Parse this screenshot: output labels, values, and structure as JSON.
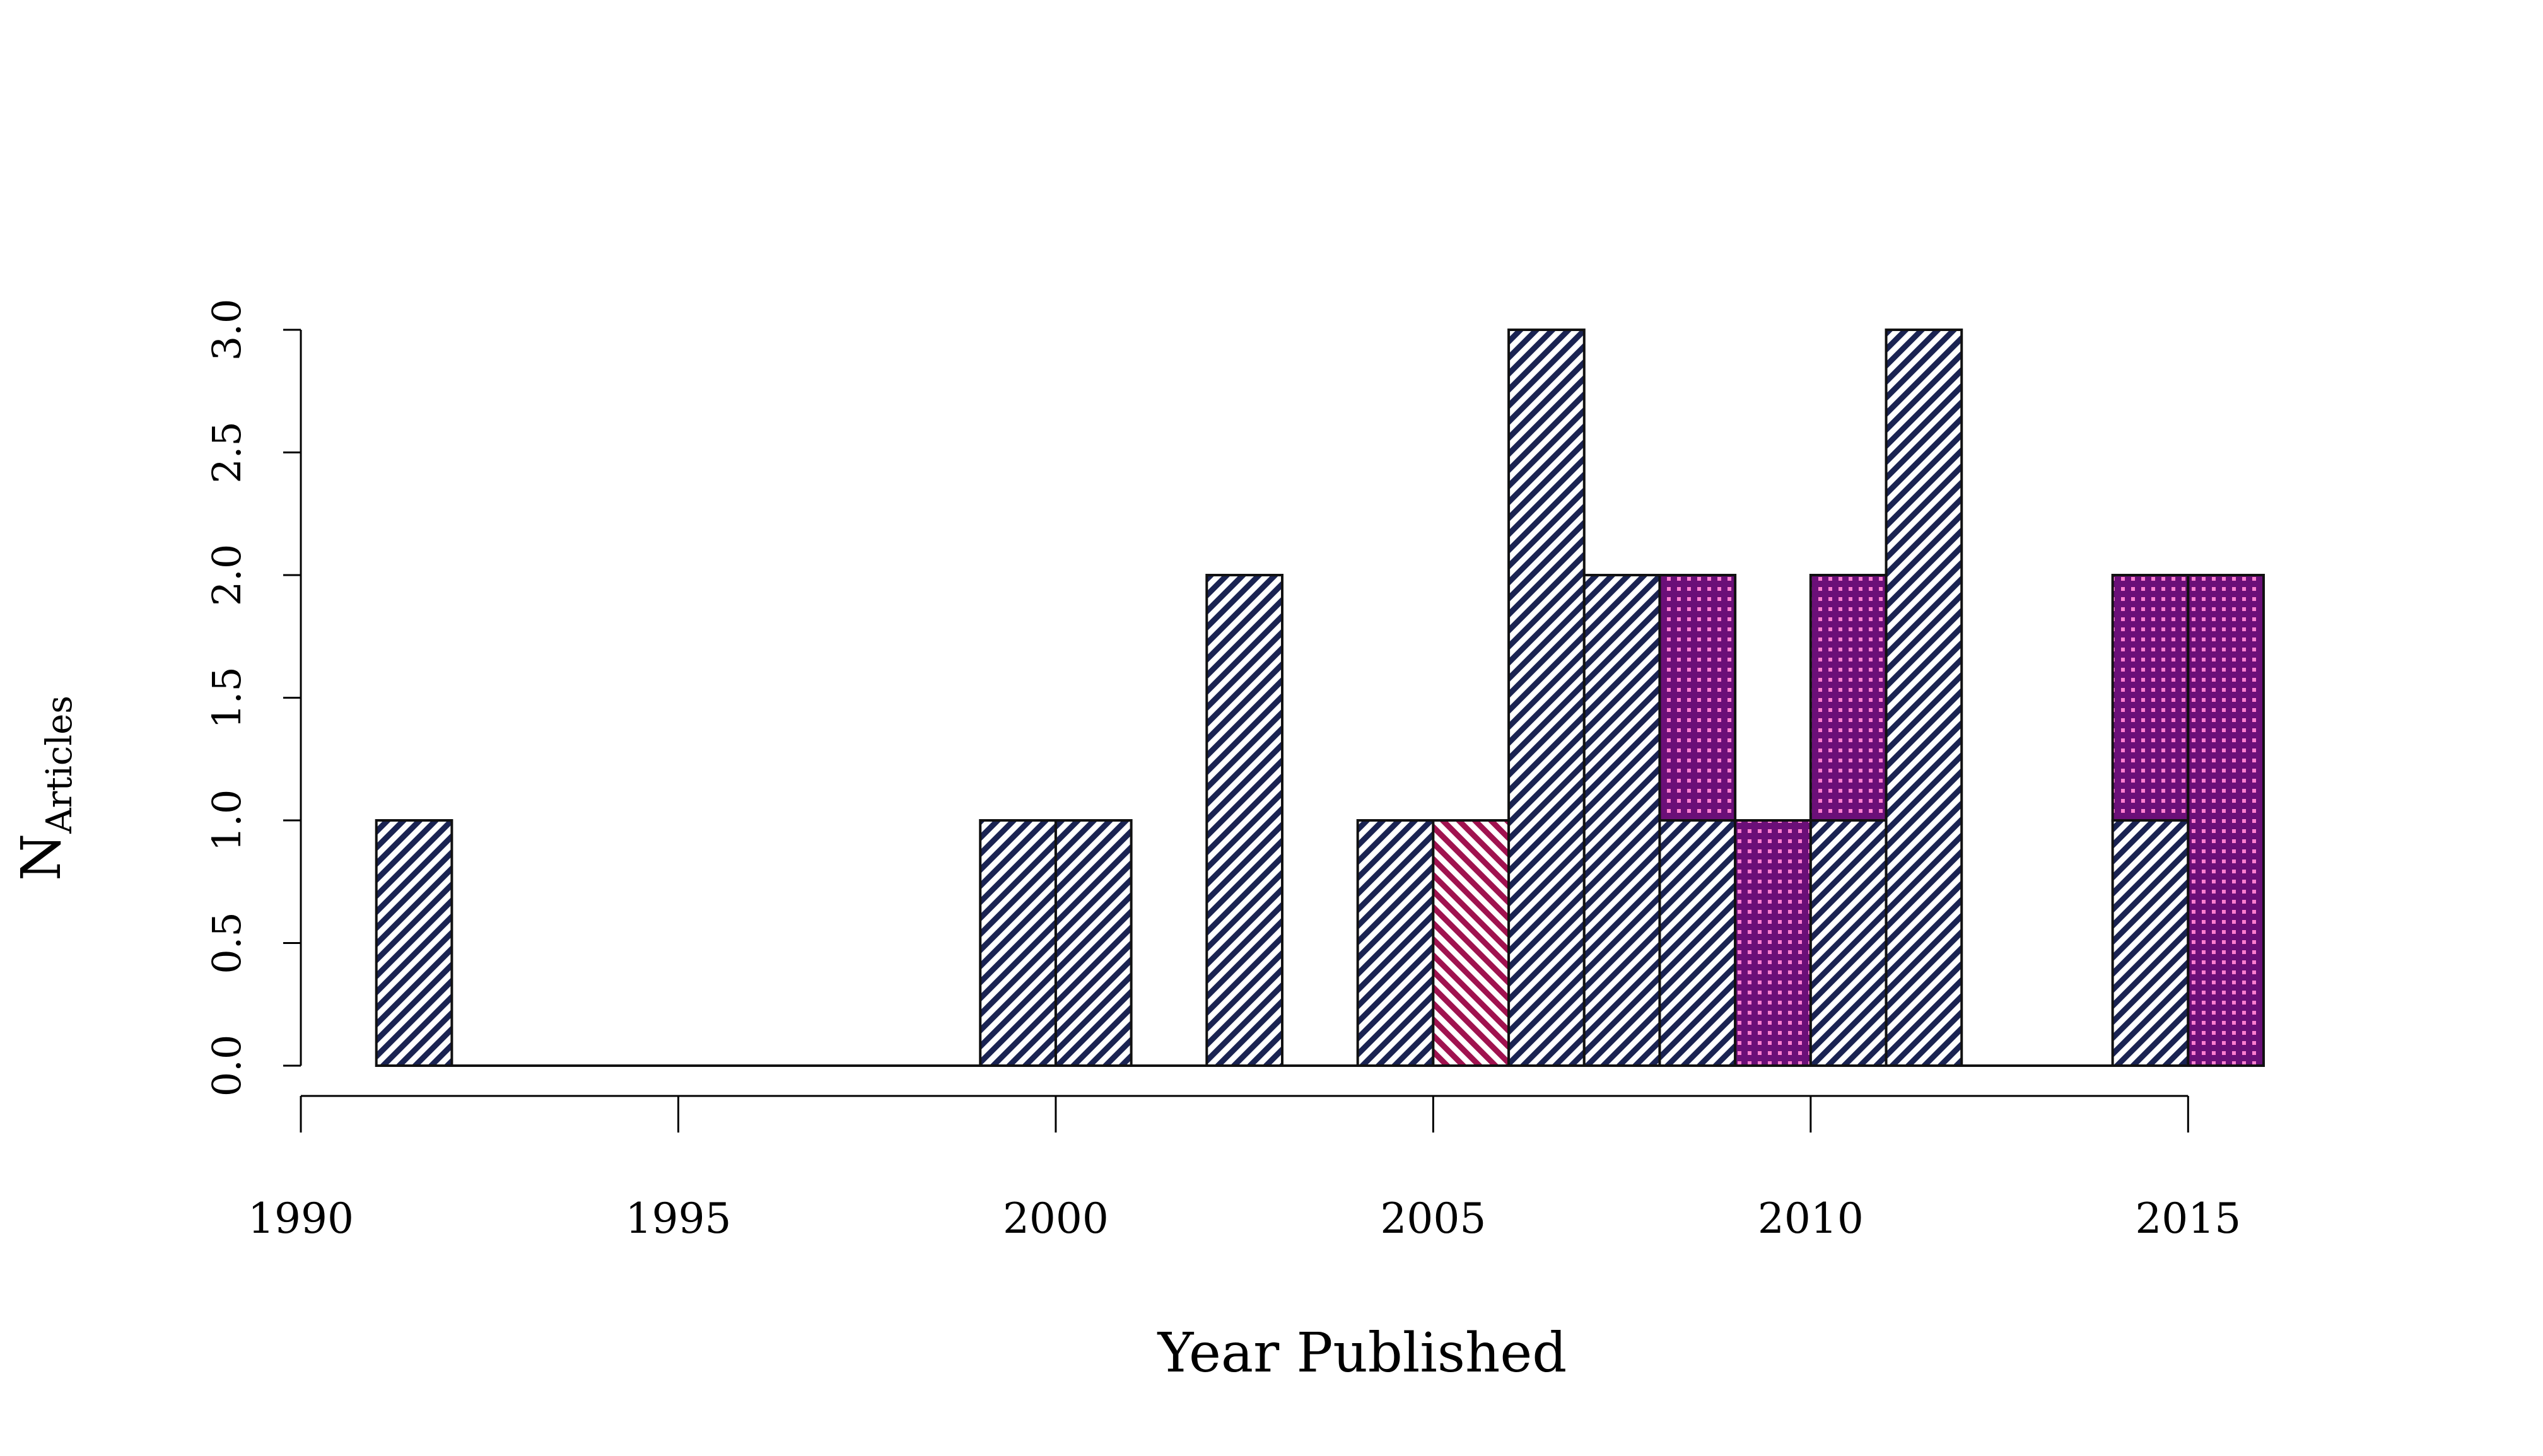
{
  "chart_data": {
    "type": "bar",
    "subtype": "stacked-histogram",
    "title": "",
    "xlabel": "Year Published",
    "ylabel": "N",
    "ylabel_subscript": "Articles",
    "xlim": [
      1990,
      2016
    ],
    "ylim": [
      0,
      3
    ],
    "x_ticks": [
      1990,
      1995,
      2000,
      2005,
      2010,
      2015
    ],
    "x_tick_labels": [
      "1990",
      "1995",
      "2000",
      "2005",
      "2010",
      "2015"
    ],
    "y_ticks": [
      0,
      0.5,
      1,
      1.5,
      2,
      2.5,
      3
    ],
    "y_tick_labels": [
      "0.0",
      "0.5",
      "1.0",
      "1.5",
      "2.0",
      "2.5",
      "3.0"
    ],
    "grid": false,
    "legend": "none",
    "bin_width": 1,
    "bins_start": 1991,
    "bins_end": 2016,
    "series": [
      {
        "pattern": "diagonal-hatch",
        "color": "#1a2352",
        "values": [
          1,
          0,
          0,
          0,
          0,
          0,
          0,
          0,
          1,
          1,
          0,
          2,
          0,
          1,
          0,
          3,
          2,
          1,
          0,
          1,
          3,
          0,
          0,
          1,
          0
        ]
      },
      {
        "pattern": "diagonal-hatch-reverse",
        "color": "#a0124f",
        "values": [
          0,
          0,
          0,
          0,
          0,
          0,
          0,
          0,
          0,
          0,
          0,
          0,
          0,
          0,
          1,
          0,
          0,
          0,
          0,
          0,
          0,
          0,
          0,
          0,
          0
        ]
      },
      {
        "pattern": "crosshatch",
        "color": "#6b0f78",
        "values": [
          0,
          0,
          0,
          0,
          0,
          0,
          0,
          0,
          0,
          0,
          0,
          0,
          0,
          0,
          0,
          0,
          0,
          1,
          1,
          1,
          0,
          0,
          0,
          1,
          2
        ]
      }
    ]
  }
}
